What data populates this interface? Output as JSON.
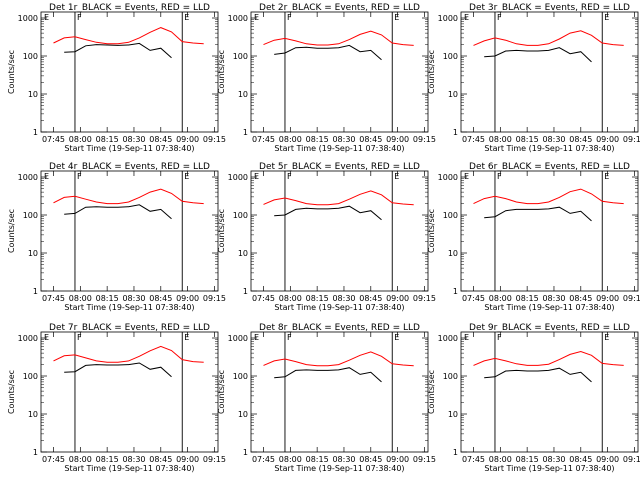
{
  "figure": {
    "ylabel": "Counts/sec",
    "xlabel": "Start Time (19-Sep-11 07:38:40)",
    "x_tick_labels": [
      "07:45",
      "08:00",
      "08:15",
      "08:30",
      "08:45",
      "09:00",
      "09:15"
    ],
    "y_tick_labels": [
      "1",
      "10",
      "100",
      "1000"
    ],
    "series_colors": {
      "events": "#000000",
      "lld": "#ff0000"
    },
    "marker_labels": [
      "E",
      "F",
      "E"
    ]
  },
  "chart_data": [
    {
      "type": "line",
      "title": "Det 1r_BLACK = Events, RED = LLD",
      "xlabel": "Start Time (19-Sep-11 07:38:40)",
      "ylabel": "Counts/sec",
      "ylim": [
        1,
        1000
      ],
      "log_y": true,
      "x": [
        "07:45",
        "07:51",
        "07:57",
        "08:03",
        "08:09",
        "08:15",
        "08:21",
        "08:27",
        "08:33",
        "08:39",
        "08:45",
        "08:51",
        "08:57",
        "09:03",
        "09:09"
      ],
      "series": [
        {
          "color": "#ff0000",
          "values": [
            220,
            300,
            320,
            270,
            230,
            210,
            210,
            230,
            300,
            420,
            560,
            430,
            240,
            220,
            210
          ]
        },
        {
          "color": "#000000",
          "values": [
            null,
            125,
            130,
            185,
            200,
            195,
            190,
            195,
            215,
            140,
            160,
            90,
            null,
            null,
            null
          ]
        }
      ],
      "vlines": [
        "07:57",
        "08:57"
      ]
    },
    {
      "type": "line",
      "title": "Det 2r_BLACK = Events, RED = LLD",
      "xlabel": "Start Time (19-Sep-11 07:38:40)",
      "ylabel": "Counts/sec",
      "ylim": [
        1,
        1000
      ],
      "log_y": true,
      "x": [
        "07:45",
        "07:51",
        "07:57",
        "08:03",
        "08:09",
        "08:15",
        "08:21",
        "08:27",
        "08:33",
        "08:39",
        "08:45",
        "08:51",
        "08:57",
        "09:03",
        "09:09"
      ],
      "series": [
        {
          "color": "#ff0000",
          "values": [
            200,
            260,
            290,
            250,
            210,
            195,
            195,
            210,
            270,
            370,
            450,
            360,
            220,
            200,
            190
          ]
        },
        {
          "color": "#000000",
          "values": [
            null,
            110,
            120,
            165,
            170,
            160,
            160,
            165,
            190,
            130,
            140,
            80,
            null,
            null,
            null
          ]
        }
      ],
      "vlines": [
        "07:57",
        "08:57"
      ]
    },
    {
      "type": "line",
      "title": "Det 3r_BLACK = Events, RED = LLD",
      "xlabel": "Start Time (19-Sep-11 07:38:40)",
      "ylabel": "Counts/sec",
      "ylim": [
        1,
        1000
      ],
      "log_y": true,
      "x": [
        "07:45",
        "07:51",
        "07:57",
        "08:03",
        "08:09",
        "08:15",
        "08:21",
        "08:27",
        "08:33",
        "08:39",
        "08:45",
        "08:51",
        "08:57",
        "09:03",
        "09:09"
      ],
      "series": [
        {
          "color": "#ff0000",
          "values": [
            190,
            250,
            300,
            260,
            210,
            190,
            190,
            210,
            280,
            400,
            460,
            350,
            220,
            200,
            190
          ]
        },
        {
          "color": "#000000",
          "values": [
            null,
            95,
            100,
            135,
            140,
            135,
            135,
            140,
            165,
            115,
            130,
            70,
            null,
            null,
            null
          ]
        }
      ],
      "vlines": [
        "07:57",
        "08:57"
      ]
    },
    {
      "type": "line",
      "title": "Det 4r_BLACK = Events, RED = LLD",
      "xlabel": "Start Time (19-Sep-11 07:38:40)",
      "ylabel": "Counts/sec",
      "ylim": [
        1,
        1000
      ],
      "log_y": true,
      "x": [
        "07:45",
        "07:51",
        "07:57",
        "08:03",
        "08:09",
        "08:15",
        "08:21",
        "08:27",
        "08:33",
        "08:39",
        "08:45",
        "08:51",
        "08:57",
        "09:03",
        "09:09"
      ],
      "series": [
        {
          "color": "#ff0000",
          "values": [
            210,
            290,
            310,
            260,
            220,
            200,
            200,
            220,
            290,
            400,
            480,
            370,
            230,
            210,
            200
          ]
        },
        {
          "color": "#000000",
          "values": [
            null,
            105,
            110,
            160,
            165,
            160,
            160,
            165,
            185,
            125,
            140,
            80,
            null,
            null,
            null
          ]
        }
      ],
      "vlines": [
        "07:57",
        "08:57"
      ]
    },
    {
      "type": "line",
      "title": "Det 5r_BLACK = Events, RED = LLD",
      "xlabel": "Start Time (19-Sep-11 07:38:40)",
      "ylabel": "Counts/sec",
      "ylim": [
        1,
        1000
      ],
      "log_y": true,
      "x": [
        "07:45",
        "07:51",
        "07:57",
        "08:03",
        "08:09",
        "08:15",
        "08:21",
        "08:27",
        "08:33",
        "08:39",
        "08:45",
        "08:51",
        "08:57",
        "09:03",
        "09:09"
      ],
      "series": [
        {
          "color": "#ff0000",
          "values": [
            190,
            250,
            280,
            240,
            200,
            185,
            185,
            200,
            260,
            350,
            430,
            340,
            210,
            195,
            185
          ]
        },
        {
          "color": "#000000",
          "values": [
            null,
            95,
            100,
            140,
            150,
            145,
            145,
            150,
            170,
            115,
            130,
            75,
            null,
            null,
            null
          ]
        }
      ],
      "vlines": [
        "07:57",
        "08:57"
      ]
    },
    {
      "type": "line",
      "title": "Det 6r_BLACK = Events, RED = LLD",
      "xlabel": "Start Time (19-Sep-11 07:38:40)",
      "ylabel": "Counts/sec",
      "ylim": [
        1,
        1000
      ],
      "log_y": true,
      "x": [
        "07:45",
        "07:51",
        "07:57",
        "08:03",
        "08:09",
        "08:15",
        "08:21",
        "08:27",
        "08:33",
        "08:39",
        "08:45",
        "08:51",
        "08:57",
        "09:03",
        "09:09"
      ],
      "series": [
        {
          "color": "#ff0000",
          "values": [
            200,
            270,
            310,
            270,
            220,
            200,
            200,
            220,
            290,
            410,
            480,
            360,
            230,
            210,
            200
          ]
        },
        {
          "color": "#000000",
          "values": [
            null,
            85,
            90,
            130,
            140,
            140,
            140,
            145,
            160,
            110,
            125,
            70,
            null,
            null,
            null
          ]
        }
      ],
      "vlines": [
        "07:57",
        "08:57"
      ]
    },
    {
      "type": "line",
      "title": "Det 7r_BLACK = Events, RED = LLD",
      "xlabel": "Start Time (19-Sep-11 07:38:40)",
      "ylabel": "Counts/sec",
      "ylim": [
        1,
        1000
      ],
      "log_y": true,
      "x": [
        "07:45",
        "07:51",
        "07:57",
        "08:03",
        "08:09",
        "08:15",
        "08:21",
        "08:27",
        "08:33",
        "08:39",
        "08:45",
        "08:51",
        "08:57",
        "09:03",
        "09:09"
      ],
      "series": [
        {
          "color": "#ff0000",
          "values": [
            250,
            340,
            360,
            300,
            250,
            230,
            230,
            250,
            330,
            460,
            600,
            470,
            270,
            240,
            230
          ]
        },
        {
          "color": "#000000",
          "values": [
            null,
            125,
            130,
            190,
            200,
            195,
            195,
            200,
            220,
            150,
            170,
            95,
            null,
            null,
            null
          ]
        }
      ],
      "vlines": [
        "07:57",
        "08:57"
      ]
    },
    {
      "type": "line",
      "title": "Det 8r_BLACK = Events, RED = LLD",
      "xlabel": "Start Time (19-Sep-11 07:38:40)",
      "ylabel": "Counts/sec",
      "ylim": [
        1,
        1000
      ],
      "log_y": true,
      "x": [
        "07:45",
        "07:51",
        "07:57",
        "08:03",
        "08:09",
        "08:15",
        "08:21",
        "08:27",
        "08:33",
        "08:39",
        "08:45",
        "08:51",
        "08:57",
        "09:03",
        "09:09"
      ],
      "series": [
        {
          "color": "#ff0000",
          "values": [
            190,
            250,
            280,
            240,
            200,
            185,
            185,
            200,
            260,
            350,
            430,
            330,
            210,
            195,
            185
          ]
        },
        {
          "color": "#000000",
          "values": [
            null,
            90,
            95,
            140,
            145,
            140,
            140,
            145,
            165,
            110,
            125,
            70,
            null,
            null,
            null
          ]
        }
      ],
      "vlines": [
        "07:57",
        "08:57"
      ]
    },
    {
      "type": "line",
      "title": "Det 9r_BLACK = Events, RED = LLD",
      "xlabel": "Start Time (19-Sep-11 07:38:40)",
      "ylabel": "Counts/sec",
      "ylim": [
        1,
        1000
      ],
      "log_y": true,
      "x": [
        "07:45",
        "07:51",
        "07:57",
        "08:03",
        "08:09",
        "08:15",
        "08:21",
        "08:27",
        "08:33",
        "08:39",
        "08:45",
        "08:51",
        "08:57",
        "09:03",
        "09:09"
      ],
      "series": [
        {
          "color": "#ff0000",
          "values": [
            190,
            250,
            290,
            250,
            210,
            190,
            190,
            205,
            270,
            370,
            440,
            350,
            215,
            200,
            190
          ]
        },
        {
          "color": "#000000",
          "values": [
            null,
            90,
            95,
            135,
            140,
            135,
            135,
            140,
            160,
            110,
            125,
            70,
            null,
            null,
            null
          ]
        }
      ],
      "vlines": [
        "07:57",
        "08:57"
      ]
    }
  ]
}
